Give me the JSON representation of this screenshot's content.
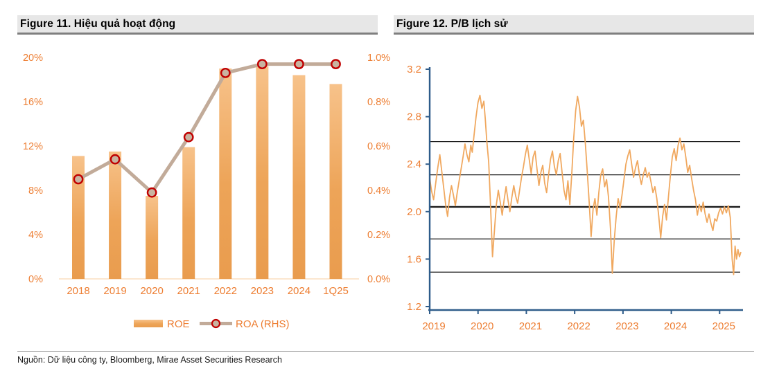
{
  "source": "Nguồn: Dữ liệu công ty, Bloomberg, Mirae Asset Securities Research",
  "colors": {
    "accent_orange": "#ed7d31",
    "bar_top": "#f7c28a",
    "bar_bottom": "#e99c4e",
    "roa_line": "#c2ab99",
    "roa_marker_fill": "#c9b3a0",
    "roa_marker_ring": "#c00000",
    "pb_line": "#f0a85f",
    "ref_line": "#1a1a1a",
    "blue_axis": "#2e5c8a",
    "zero_line": "#fbdfbf",
    "header_band": "#e7e7e7",
    "header_rule": "#7f7f7f"
  },
  "figures": [
    {
      "title": "Figure 11. Hiệu quả hoạt động",
      "chart_data": {
        "type": "bar",
        "categories": [
          "2018",
          "2019",
          "2020",
          "2021",
          "2022",
          "2023",
          "2024",
          "1Q25"
        ],
        "series": [
          {
            "name": "ROE",
            "type": "bar",
            "axis": "left",
            "unit": "%",
            "values": [
              11.1,
              11.5,
              7.5,
              11.9,
              19.0,
              19.2,
              18.4,
              17.6
            ]
          },
          {
            "name": "ROA (RHS)",
            "type": "line",
            "axis": "right",
            "unit": "%",
            "values": [
              0.45,
              0.54,
              0.39,
              0.64,
              0.93,
              0.97,
              0.97,
              0.97
            ]
          }
        ],
        "left_axis": {
          "min": 0,
          "max": 20,
          "ticks": [
            "0%",
            "4%",
            "8%",
            "12%",
            "16%",
            "20%"
          ]
        },
        "right_axis": {
          "min": 0.0,
          "max": 1.0,
          "ticks": [
            "0.0%",
            "0.2%",
            "0.4%",
            "0.6%",
            "0.8%",
            "1.0%"
          ]
        },
        "legend": [
          {
            "label": "ROE"
          },
          {
            "label": "ROA (RHS)"
          }
        ],
        "legend_position": "bottom"
      }
    },
    {
      "title": "Figure 12. P/B lịch sử",
      "chart_data": {
        "type": "line",
        "title": "P/B lịch sử",
        "x_ticks": [
          "2019",
          "2020",
          "2021",
          "2022",
          "2023",
          "2024",
          "2025"
        ],
        "y_ticks": [
          "3.2",
          "2.8",
          "2.4",
          "2.0",
          "1.6",
          "1.2"
        ],
        "xlim": [
          2019,
          2025.5
        ],
        "ylim": [
          1.2,
          3.2
        ],
        "grid": false,
        "reference_lines": {
          "values": [
            2.59,
            2.31,
            2.04,
            1.77,
            1.49
          ],
          "mean_index": 2
        },
        "series": [
          {
            "name": "P/B",
            "points": [
              [
                2019.0,
                2.28
              ],
              [
                2019.04,
                2.17
              ],
              [
                2019.08,
                2.1
              ],
              [
                2019.13,
                2.26
              ],
              [
                2019.17,
                2.38
              ],
              [
                2019.21,
                2.48
              ],
              [
                2019.25,
                2.34
              ],
              [
                2019.29,
                2.2
              ],
              [
                2019.33,
                2.06
              ],
              [
                2019.37,
                1.96
              ],
              [
                2019.41,
                2.12
              ],
              [
                2019.45,
                2.22
              ],
              [
                2019.49,
                2.14
              ],
              [
                2019.53,
                2.05
              ],
              [
                2019.57,
                2.16
              ],
              [
                2019.61,
                2.26
              ],
              [
                2019.65,
                2.36
              ],
              [
                2019.69,
                2.46
              ],
              [
                2019.73,
                2.57
              ],
              [
                2019.77,
                2.48
              ],
              [
                2019.81,
                2.42
              ],
              [
                2019.85,
                2.56
              ],
              [
                2019.88,
                2.5
              ],
              [
                2019.92,
                2.65
              ],
              [
                2019.96,
                2.8
              ],
              [
                2020.0,
                2.92
              ],
              [
                2020.04,
                2.98
              ],
              [
                2020.08,
                2.87
              ],
              [
                2020.12,
                2.93
              ],
              [
                2020.15,
                2.78
              ],
              [
                2020.18,
                2.6
              ],
              [
                2020.22,
                2.42
              ],
              [
                2020.26,
                2.05
              ],
              [
                2020.3,
                1.62
              ],
              [
                2020.34,
                1.84
              ],
              [
                2020.38,
                2.06
              ],
              [
                2020.42,
                2.18
              ],
              [
                2020.46,
                2.08
              ],
              [
                2020.5,
                1.97
              ],
              [
                2020.54,
                2.1
              ],
              [
                2020.58,
                2.21
              ],
              [
                2020.62,
                2.1
              ],
              [
                2020.66,
                2.0
              ],
              [
                2020.7,
                2.12
              ],
              [
                2020.74,
                2.22
              ],
              [
                2020.78,
                2.13
              ],
              [
                2020.82,
                2.07
              ],
              [
                2020.86,
                2.18
              ],
              [
                2020.9,
                2.29
              ],
              [
                2020.94,
                2.38
              ],
              [
                2020.98,
                2.48
              ],
              [
                2021.02,
                2.56
              ],
              [
                2021.06,
                2.44
              ],
              [
                2021.1,
                2.32
              ],
              [
                2021.14,
                2.46
              ],
              [
                2021.18,
                2.51
              ],
              [
                2021.22,
                2.36
              ],
              [
                2021.26,
                2.22
              ],
              [
                2021.3,
                2.33
              ],
              [
                2021.34,
                2.39
              ],
              [
                2021.38,
                2.24
              ],
              [
                2021.42,
                2.16
              ],
              [
                2021.46,
                2.31
              ],
              [
                2021.5,
                2.44
              ],
              [
                2021.54,
                2.51
              ],
              [
                2021.58,
                2.38
              ],
              [
                2021.62,
                2.31
              ],
              [
                2021.66,
                2.43
              ],
              [
                2021.7,
                2.49
              ],
              [
                2021.74,
                2.33
              ],
              [
                2021.78,
                2.18
              ],
              [
                2021.82,
                2.1
              ],
              [
                2021.86,
                2.26
              ],
              [
                2021.9,
                2.06
              ],
              [
                2021.94,
                2.32
              ],
              [
                2021.98,
                2.62
              ],
              [
                2022.02,
                2.85
              ],
              [
                2022.06,
                2.97
              ],
              [
                2022.1,
                2.88
              ],
              [
                2022.14,
                2.72
              ],
              [
                2022.18,
                2.77
              ],
              [
                2022.22,
                2.58
              ],
              [
                2022.26,
                2.34
              ],
              [
                2022.3,
                2.08
              ],
              [
                2022.34,
                1.79
              ],
              [
                2022.38,
                2.02
              ],
              [
                2022.42,
                2.11
              ],
              [
                2022.46,
                1.97
              ],
              [
                2022.5,
                2.16
              ],
              [
                2022.54,
                2.31
              ],
              [
                2022.58,
                2.36
              ],
              [
                2022.62,
                2.21
              ],
              [
                2022.66,
                2.27
              ],
              [
                2022.7,
                2.12
              ],
              [
                2022.74,
                1.86
              ],
              [
                2022.78,
                1.48
              ],
              [
                2022.82,
                1.76
              ],
              [
                2022.86,
                1.96
              ],
              [
                2022.9,
                2.11
              ],
              [
                2022.94,
                2.03
              ],
              [
                2022.98,
                2.14
              ],
              [
                2023.02,
                2.27
              ],
              [
                2023.06,
                2.4
              ],
              [
                2023.1,
                2.47
              ],
              [
                2023.14,
                2.52
              ],
              [
                2023.18,
                2.4
              ],
              [
                2023.22,
                2.29
              ],
              [
                2023.26,
                2.37
              ],
              [
                2023.3,
                2.43
              ],
              [
                2023.34,
                2.31
              ],
              [
                2023.38,
                2.23
              ],
              [
                2023.42,
                2.31
              ],
              [
                2023.46,
                2.37
              ],
              [
                2023.5,
                2.29
              ],
              [
                2023.54,
                2.33
              ],
              [
                2023.58,
                2.25
              ],
              [
                2023.62,
                2.16
              ],
              [
                2023.66,
                2.21
              ],
              [
                2023.7,
                2.11
              ],
              [
                2023.74,
                1.96
              ],
              [
                2023.78,
                1.78
              ],
              [
                2023.82,
                1.96
              ],
              [
                2023.86,
                2.06
              ],
              [
                2023.9,
                1.93
              ],
              [
                2023.94,
                2.12
              ],
              [
                2023.98,
                2.3
              ],
              [
                2024.02,
                2.46
              ],
              [
                2024.06,
                2.53
              ],
              [
                2024.1,
                2.43
              ],
              [
                2024.14,
                2.56
              ],
              [
                2024.18,
                2.62
              ],
              [
                2024.22,
                2.52
              ],
              [
                2024.26,
                2.57
              ],
              [
                2024.3,
                2.46
              ],
              [
                2024.34,
                2.33
              ],
              [
                2024.38,
                2.39
              ],
              [
                2024.42,
                2.28
              ],
              [
                2024.46,
                2.18
              ],
              [
                2024.5,
                2.1
              ],
              [
                2024.54,
                1.97
              ],
              [
                2024.58,
                2.06
              ],
              [
                2024.62,
                2.0
              ],
              [
                2024.66,
                2.08
              ],
              [
                2024.7,
                1.98
              ],
              [
                2024.74,
                1.91
              ],
              [
                2024.78,
                1.98
              ],
              [
                2024.82,
                1.9
              ],
              [
                2024.86,
                1.84
              ],
              [
                2024.9,
                1.94
              ],
              [
                2024.94,
                1.92
              ],
              [
                2024.98,
                1.99
              ],
              [
                2025.02,
                2.03
              ],
              [
                2025.06,
                1.98
              ],
              [
                2025.1,
                2.04
              ],
              [
                2025.14,
                1.99
              ],
              [
                2025.18,
                2.05
              ],
              [
                2025.22,
                1.95
              ],
              [
                2025.26,
                1.6
              ],
              [
                2025.29,
                1.47
              ],
              [
                2025.32,
                1.71
              ],
              [
                2025.35,
                1.6
              ],
              [
                2025.38,
                1.68
              ],
              [
                2025.41,
                1.62
              ],
              [
                2025.44,
                1.66
              ]
            ]
          }
        ]
      }
    }
  ]
}
